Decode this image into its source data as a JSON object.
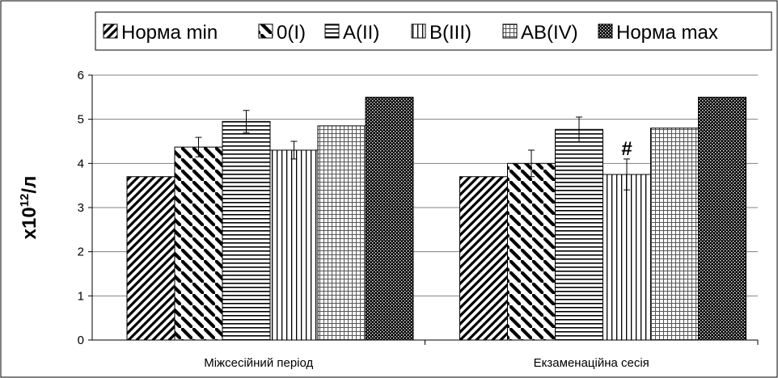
{
  "chart_data": {
    "type": "bar",
    "categories": [
      "Міжсесійний період",
      "Екзаменаційна сесія"
    ],
    "ylabel_base": "x10",
    "ylabel_sup": "12",
    "ylabel_unit": "/л",
    "ylim": [
      0,
      6
    ],
    "yticks": [
      "0",
      "1",
      "2",
      "3",
      "4",
      "5",
      "6"
    ],
    "grid": true,
    "legend_position": "top",
    "series": [
      {
        "name": "Норма min",
        "pattern": "diag-up",
        "values": [
          3.7,
          3.7
        ],
        "errors": [
          null,
          null
        ]
      },
      {
        "name": "0(I)",
        "pattern": "diag-down",
        "values": [
          4.37,
          4.0
        ],
        "errors": [
          0.22,
          0.3
        ]
      },
      {
        "name": "A(II)",
        "pattern": "horizontal",
        "values": [
          4.95,
          4.77
        ],
        "errors": [
          0.25,
          0.28
        ]
      },
      {
        "name": "B(III)",
        "pattern": "vertical",
        "values": [
          4.3,
          3.75
        ],
        "errors": [
          0.2,
          0.35
        ]
      },
      {
        "name": "AB(IV)",
        "pattern": "grid",
        "values": [
          4.85,
          4.8
        ],
        "errors": [
          null,
          null
        ]
      },
      {
        "name": "Норма max",
        "pattern": "dense",
        "values": [
          5.5,
          5.5
        ],
        "errors": [
          null,
          null
        ]
      }
    ],
    "annotations": [
      {
        "text": "#",
        "category_index": 1,
        "series_index": 3
      }
    ]
  }
}
